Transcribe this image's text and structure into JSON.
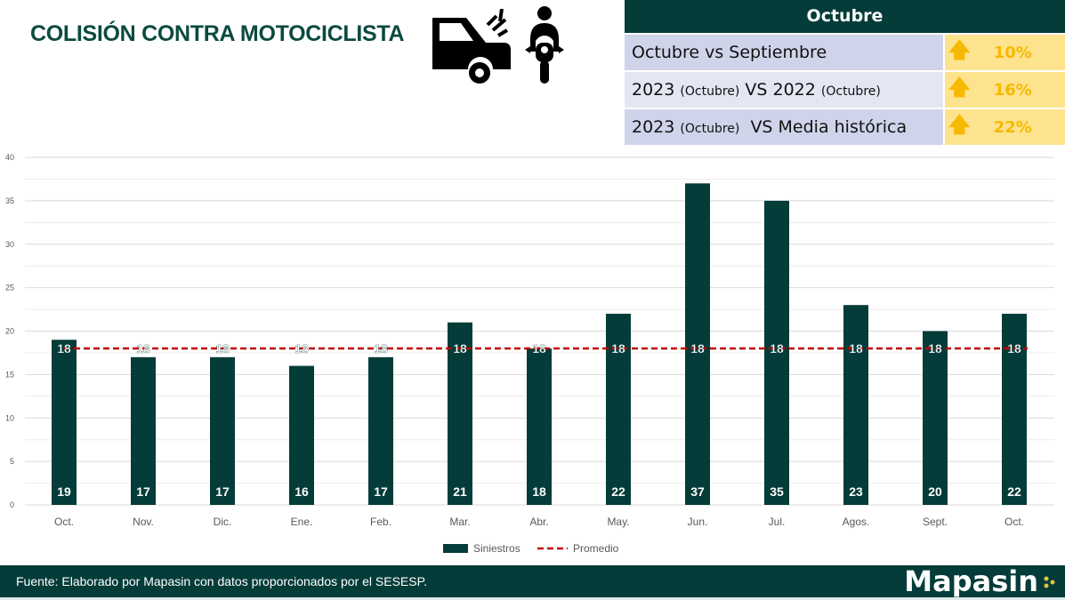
{
  "header": {
    "title": "COLISIÓN CONTRA MOTOCICLISTA",
    "icons": [
      "car-crash-icon",
      "motorcyclist-icon"
    ]
  },
  "panel": {
    "title": "Octubre",
    "rows": [
      {
        "a": "Octubre vs Septiembre",
        "b": "",
        "c": "",
        "d": "",
        "value": "10%",
        "trend": "up"
      },
      {
        "a": "2023 ",
        "b": "(Octubre)",
        "c": " VS 2022 ",
        "d": "(Octubre)",
        "value": "16%",
        "trend": "up"
      },
      {
        "a": "2023 ",
        "b": "(Octubre)",
        "c": "  VS Media histórica",
        "d": "",
        "value": "22%",
        "trend": "up"
      }
    ],
    "colors": {
      "header": "#043c39",
      "label_bg": [
        "#cfd4ea",
        "#e3e6f3",
        "#cfd4ea"
      ],
      "value_bg": "#fde38e",
      "arrow": "#f7b800"
    }
  },
  "chart_data": {
    "type": "bar",
    "categories": [
      "Oct.",
      "Nov.",
      "Dic.",
      "Ene.",
      "Feb.",
      "Mar.",
      "Abr.",
      "May.",
      "Jun.",
      "Jul.",
      "Agos.",
      "Sept.",
      "Oct."
    ],
    "series": [
      {
        "name": "Siniestros",
        "type": "bar",
        "color": "#043c39",
        "values": [
          19,
          17,
          17,
          16,
          17,
          21,
          18,
          22,
          37,
          35,
          23,
          20,
          22
        ]
      },
      {
        "name": "Promedio",
        "type": "line",
        "style": "dashed",
        "color": "#c00000",
        "values": [
          18,
          18,
          18,
          18,
          18,
          18,
          18,
          18,
          18,
          18,
          18,
          18,
          18
        ]
      }
    ],
    "yticks": [
      0,
      5,
      10,
      15,
      20,
      25,
      30,
      35,
      40
    ],
    "ylim": [
      0,
      40
    ],
    "grid": true,
    "legend": "bottom"
  },
  "footer": {
    "source": "Fuente: Elaborado por Mapasin con datos proporcionados por el SESESP.",
    "logo": "Mapasin"
  }
}
